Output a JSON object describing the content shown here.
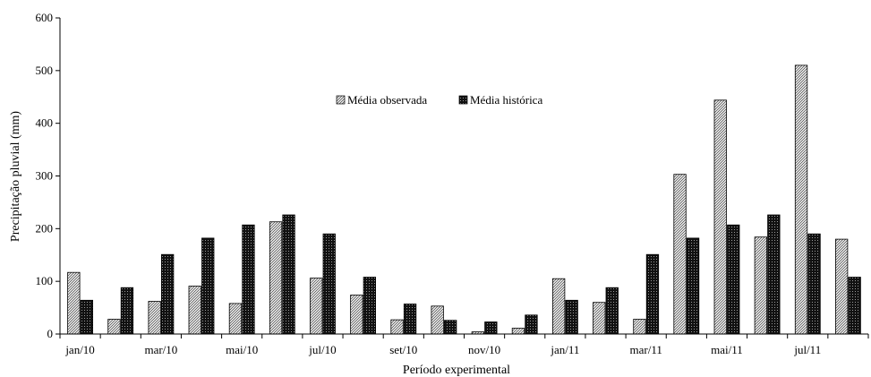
{
  "chart_data": {
    "type": "bar",
    "xlabel": "Período experimental",
    "ylabel": "Precipitação pluvial (mm)",
    "ylim": [
      0,
      600
    ],
    "yticks": [
      "0",
      "100",
      "200",
      "300",
      "400",
      "500",
      "600"
    ],
    "legend_position": "top-center",
    "grid": false,
    "categories": [
      "jan/10",
      "fev/10",
      "mar/10",
      "abr/10",
      "mai/10",
      "jun/10",
      "jul/10",
      "ago/10",
      "set/10",
      "out/10",
      "nov/10",
      "dez/10",
      "jan/11",
      "fev/11",
      "mar/11",
      "abr/11",
      "mai/11",
      "jun/11",
      "jul/11",
      "ago/11"
    ],
    "tick_labels": [
      "jan/10",
      "",
      "mar/10",
      "",
      "mai/10",
      "",
      "jul/10",
      "",
      "set/10",
      "",
      "nov/10",
      "",
      "jan/11",
      "",
      "mar/11",
      "",
      "mai/11",
      "",
      "jul/11",
      ""
    ],
    "series": [
      {
        "name": "Média observada",
        "pattern": "hatched-light",
        "values": [
          117,
          28,
          62,
          91,
          58,
          213,
          106,
          74,
          27,
          53,
          4,
          11,
          105,
          60,
          28,
          303,
          444,
          184,
          510,
          180
        ]
      },
      {
        "name": "Média histórica",
        "pattern": "dotted-dark",
        "values": [
          64,
          88,
          151,
          182,
          207,
          226,
          190,
          108,
          57,
          26,
          23,
          36,
          64,
          88,
          151,
          182,
          207,
          226,
          190,
          108
        ]
      }
    ]
  }
}
